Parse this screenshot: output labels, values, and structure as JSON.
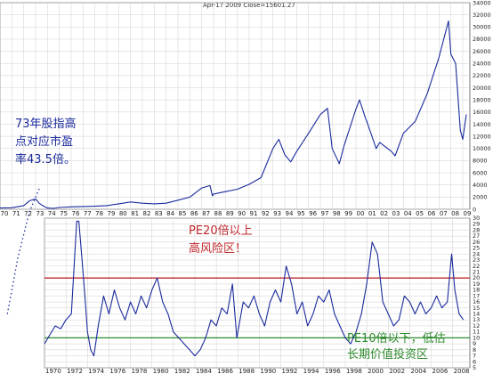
{
  "chart_data": [
    {
      "type": "line",
      "title": "Apr-17 2009    Close=15601.27",
      "x_tick_labels": [
        "70",
        "71",
        "72",
        "73",
        "74",
        "75",
        "76",
        "77",
        "78",
        "79",
        "80",
        "81",
        "82",
        "83",
        "84",
        "85",
        "86",
        "87",
        "88",
        "89",
        "90",
        "91",
        "92",
        "93",
        "94",
        "95",
        "96",
        "97",
        "98",
        "99",
        "00",
        "01",
        "02",
        "03",
        "04",
        "05",
        "06",
        "07",
        "08",
        "09"
      ],
      "y_tick_labels": [
        "0",
        "2000",
        "4000",
        "6000",
        "8000",
        "10000",
        "12000",
        "14000",
        "16000",
        "18000",
        "20000",
        "22000",
        "24000",
        "26000",
        "28000",
        "30000",
        "32000",
        "34000"
      ],
      "ylim": [
        0,
        34000
      ],
      "grid": true,
      "series": [
        {
          "color": "#1a2a9c",
          "x": [
            1970,
            1971,
            1972,
            1972.5,
            1973,
            1973.3,
            1973.6,
            1974,
            1974.5,
            1975,
            1976,
            1977,
            1978,
            1979,
            1980,
            1981,
            1982,
            1983,
            1984,
            1985,
            1986,
            1987,
            1987.7,
            1987.9,
            1988,
            1989,
            1990,
            1991,
            1992,
            1993,
            1993.5,
            1994,
            1994.5,
            1995,
            1996,
            1997,
            1997.6,
            1998,
            1998.6,
            1999,
            2000,
            2000.3,
            2000.8,
            2001,
            2001.7,
            2002,
            2003,
            2003.3,
            2004,
            2005,
            2006,
            2007,
            2007.8,
            2008,
            2008.4,
            2008.8,
            2009.0,
            2009.3
          ],
          "y": [
            200,
            250,
            600,
            1400,
            1700,
            1000,
            600,
            200,
            150,
            300,
            400,
            450,
            500,
            600,
            900,
            1200,
            1000,
            900,
            1000,
            1500,
            2000,
            3500,
            3900,
            2200,
            2500,
            2900,
            3300,
            4100,
            5200,
            10000,
            11500,
            9000,
            7800,
            9500,
            12500,
            15600,
            16600,
            10000,
            7500,
            10500,
            16500,
            18000,
            15000,
            14000,
            10000,
            11000,
            9500,
            8800,
            12500,
            14500,
            19000,
            25000,
            31000,
            25500,
            24000,
            13000,
            11500,
            15600
          ]
        }
      ]
    },
    {
      "type": "line",
      "x_tick_labels": [
        "1970",
        "1972",
        "1974",
        "1976",
        "1978",
        "1980",
        "1982",
        "1984",
        "1986",
        "1988",
        "1990",
        "1992",
        "1994",
        "1996",
        "1998",
        "2000",
        "2002",
        "2004",
        "2006",
        "2008"
      ],
      "y_tick_labels": [
        "5",
        "6",
        "7",
        "8",
        "9",
        "10",
        "11",
        "12",
        "13",
        "14",
        "15",
        "16",
        "17",
        "18",
        "19",
        "20",
        "21",
        "22",
        "23",
        "24",
        "25",
        "26",
        "27",
        "28",
        "29",
        "30"
      ],
      "ylim": [
        5,
        30
      ],
      "hlines": [
        {
          "y": 20,
          "color": "#c0282b"
        },
        {
          "y": 10,
          "color": "#2e8b2e"
        }
      ],
      "series": [
        {
          "color": "#1a2a9c",
          "x": [
            1970,
            1970.5,
            1971,
            1971.5,
            1972,
            1972.5,
            1973,
            1973.2,
            1973.5,
            1973.8,
            1974,
            1974.3,
            1974.6,
            1975,
            1975.5,
            1976,
            1976.5,
            1977,
            1977.5,
            1978,
            1978.5,
            1979,
            1979.5,
            1980,
            1980.5,
            1981,
            1981.5,
            1982,
            1982.5,
            1983,
            1983.5,
            1984,
            1984.5,
            1985,
            1985.5,
            1986,
            1986.5,
            1987,
            1987.5,
            1987.9,
            1988,
            1988.5,
            1989,
            1989.5,
            1990,
            1990.5,
            1991,
            1991.5,
            1992,
            1992.5,
            1993,
            1993.5,
            1994,
            1994.5,
            1995,
            1995.5,
            1996,
            1996.5,
            1997,
            1997.5,
            1998,
            1998.5,
            1999,
            1999.5,
            2000,
            2000.5,
            2001,
            2001.5,
            2002,
            2002.5,
            2003,
            2003.5,
            2004,
            2004.5,
            2005,
            2005.5,
            2006,
            2006.5,
            2007,
            2007.5,
            2007.9,
            2008.2,
            2008.6,
            2009.0
          ],
          "y": [
            9,
            10.5,
            12,
            11.5,
            13,
            14,
            30,
            43.5,
            23,
            16,
            11,
            8,
            7,
            12,
            17,
            14,
            18,
            15,
            13,
            16,
            14,
            17,
            15,
            18,
            20,
            16,
            14,
            11,
            10,
            9,
            8,
            7,
            8,
            10,
            13,
            12,
            15,
            14,
            19,
            10,
            11,
            16,
            15,
            17,
            14,
            12,
            16,
            18,
            16,
            22,
            19,
            14,
            16,
            12,
            14,
            17,
            16,
            18,
            14,
            12,
            10,
            9,
            11,
            14,
            19,
            26,
            24,
            16,
            14,
            12,
            13,
            17,
            16,
            14,
            16,
            14,
            15,
            17,
            15,
            16,
            24,
            18,
            14,
            13
          ]
        }
      ]
    }
  ],
  "annotations": {
    "top_note": [
      "73年股指高",
      "点对应市盈",
      "率43.5倍。"
    ],
    "high_zone": [
      "PE20倍以上",
      "高风险区！"
    ],
    "low_zone": [
      "PE10倍以下，低估",
      "长期价值投资区"
    ]
  },
  "colors": {
    "line": "#1a2a9c",
    "pe20": "#c0282b",
    "pe10": "#2e8b2e",
    "grid": "#cfcfcf",
    "note": "#1a2a9c",
    "high_note": "#c0282b",
    "low_note": "#2e8b2e"
  }
}
